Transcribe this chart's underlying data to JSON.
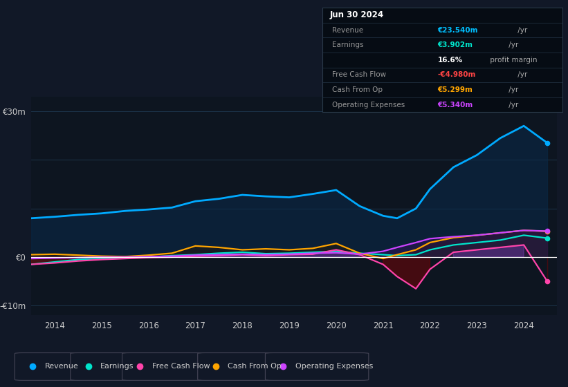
{
  "bg_color": "#111827",
  "plot_bg_color": "#0d1520",
  "zero_line_color": "#ffffff",
  "ylim": [
    -12,
    33
  ],
  "xlim": [
    2013.5,
    2024.7
  ],
  "years": [
    2013.5,
    2014.0,
    2014.5,
    2015.0,
    2015.5,
    2016.0,
    2016.5,
    2017.0,
    2017.5,
    2018.0,
    2018.5,
    2019.0,
    2019.5,
    2020.0,
    2020.5,
    2021.0,
    2021.3,
    2021.7,
    2022.0,
    2022.5,
    2023.0,
    2023.5,
    2024.0,
    2024.5
  ],
  "revenue": [
    8.0,
    8.3,
    8.7,
    9.0,
    9.5,
    9.8,
    10.2,
    11.5,
    12.0,
    12.8,
    12.5,
    12.3,
    13.0,
    13.8,
    10.5,
    8.5,
    8.0,
    10.0,
    14.0,
    18.5,
    21.0,
    24.5,
    27.0,
    23.5
  ],
  "earnings": [
    -1.5,
    -1.0,
    -0.5,
    -0.3,
    0.0,
    0.0,
    0.3,
    0.5,
    0.8,
    1.0,
    0.7,
    0.8,
    1.0,
    1.2,
    0.8,
    0.5,
    0.3,
    0.5,
    1.5,
    2.5,
    3.0,
    3.5,
    4.5,
    3.9
  ],
  "free_cash_flow": [
    -1.5,
    -1.2,
    -0.8,
    -0.5,
    -0.3,
    -0.1,
    0.0,
    0.2,
    0.3,
    0.5,
    0.3,
    0.5,
    0.6,
    1.5,
    0.5,
    -1.5,
    -4.0,
    -6.5,
    -2.5,
    1.0,
    1.5,
    2.0,
    2.5,
    -4.98
  ],
  "cash_from_op": [
    0.5,
    0.6,
    0.4,
    0.2,
    0.1,
    0.4,
    0.8,
    2.3,
    2.0,
    1.5,
    1.7,
    1.5,
    1.8,
    2.8,
    0.8,
    -0.3,
    0.5,
    1.5,
    3.0,
    4.0,
    4.5,
    5.0,
    5.5,
    5.3
  ],
  "op_expenses": [
    -0.3,
    -0.2,
    -0.1,
    0.0,
    0.0,
    0.1,
    0.2,
    0.4,
    0.5,
    0.6,
    0.5,
    0.6,
    0.8,
    0.9,
    0.6,
    1.2,
    2.0,
    3.0,
    3.8,
    4.2,
    4.5,
    5.0,
    5.5,
    5.34
  ],
  "revenue_color": "#00aaff",
  "earnings_color": "#00e5cc",
  "fcf_color": "#ff44aa",
  "cashop_color": "#ffa500",
  "opex_color": "#cc44ff",
  "legend_items": [
    {
      "label": "Revenue",
      "color": "#00aaff"
    },
    {
      "label": "Earnings",
      "color": "#00e5cc"
    },
    {
      "label": "Free Cash Flow",
      "color": "#ff44aa"
    },
    {
      "label": "Cash From Op",
      "color": "#ffa500"
    },
    {
      "label": "Operating Expenses",
      "color": "#cc44ff"
    }
  ],
  "info_rows": [
    {
      "label": "Jun 30 2024",
      "value": "",
      "lcolor": "#ffffff",
      "vcolor": "#ffffff",
      "header": true
    },
    {
      "label": "Revenue",
      "value": "€23.540m",
      "unit": " /yr",
      "lcolor": "#aaaaaa",
      "vcolor": "#00bfff",
      "header": false
    },
    {
      "label": "Earnings",
      "value": "€3.902m",
      "unit": " /yr",
      "lcolor": "#aaaaaa",
      "vcolor": "#00e5cc",
      "header": false
    },
    {
      "label": "",
      "value": "16.6%",
      "unit": " profit margin",
      "lcolor": "#aaaaaa",
      "vcolor": "#ffffff",
      "header": false
    },
    {
      "label": "Free Cash Flow",
      "value": "-€4.980m",
      "unit": " /yr",
      "lcolor": "#aaaaaa",
      "vcolor": "#ff4444",
      "header": false
    },
    {
      "label": "Cash From Op",
      "value": "€5.299m",
      "unit": " /yr",
      "lcolor": "#aaaaaa",
      "vcolor": "#ffa500",
      "header": false
    },
    {
      "label": "Operating Expenses",
      "value": "€5.340m",
      "unit": " /yr",
      "lcolor": "#aaaaaa",
      "vcolor": "#cc44ff",
      "header": false
    }
  ]
}
